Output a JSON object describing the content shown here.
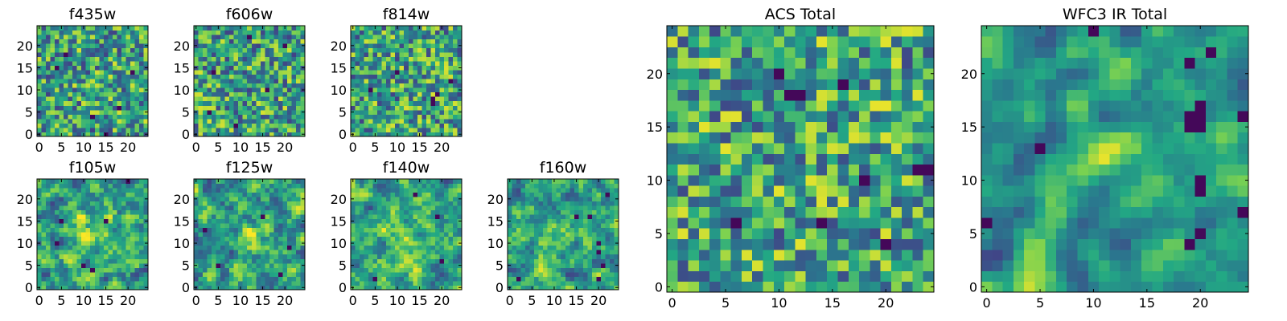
{
  "colormap": {
    "name": "viridis",
    "stops": [
      "#440154",
      "#414487",
      "#2a788e",
      "#22a884",
      "#7ad151",
      "#fde725"
    ]
  },
  "chart_data": [
    {
      "type": "heatmap",
      "title": "f435w",
      "image_size": [
        25,
        25
      ],
      "xlim": [
        -0.5,
        24.5
      ],
      "ylim": [
        -0.5,
        24.5
      ],
      "xticks": [
        0,
        5,
        10,
        15,
        20
      ],
      "yticks": [
        0,
        5,
        10,
        15,
        20
      ],
      "texture_seed": 101,
      "smoothness": 0,
      "value_bias": 0.55,
      "blobs": [],
      "dark_spots": [
        [
          6,
          18
        ],
        [
          18,
          6
        ],
        [
          12,
          4
        ],
        [
          21,
          14
        ],
        [
          4,
          15
        ],
        [
          15,
          0
        ]
      ]
    },
    {
      "type": "heatmap",
      "title": "f606w",
      "image_size": [
        25,
        25
      ],
      "xlim": [
        -0.5,
        24.5
      ],
      "ylim": [
        -0.5,
        24.5
      ],
      "xticks": [
        0,
        5,
        10,
        15,
        20
      ],
      "yticks": [
        0,
        5,
        10,
        15,
        20
      ],
      "texture_seed": 202,
      "smoothness": 0,
      "value_bias": 0.55,
      "blobs": [],
      "dark_spots": [
        [
          4,
          14
        ],
        [
          9,
          2
        ],
        [
          16,
          10
        ],
        [
          20,
          20
        ],
        [
          3,
          5
        ],
        [
          12,
          22
        ]
      ]
    },
    {
      "type": "heatmap",
      "title": "f814w",
      "image_size": [
        25,
        25
      ],
      "xlim": [
        -0.5,
        24.5
      ],
      "ylim": [
        -0.5,
        24.5
      ],
      "xticks": [
        0,
        5,
        10,
        15,
        20
      ],
      "yticks": [
        0,
        5,
        10,
        15,
        20
      ],
      "texture_seed": 303,
      "smoothness": 0,
      "value_bias": 0.55,
      "blobs": [],
      "dark_spots": [
        [
          18,
          8
        ],
        [
          18,
          7
        ],
        [
          19,
          9
        ],
        [
          10,
          14
        ],
        [
          4,
          10
        ],
        [
          22,
          12
        ]
      ]
    },
    {
      "type": "heatmap",
      "title": "f105w",
      "image_size": [
        25,
        25
      ],
      "xlim": [
        -0.5,
        24.5
      ],
      "ylim": [
        -0.5,
        24.5
      ],
      "xticks": [
        0,
        5,
        10,
        15,
        20
      ],
      "yticks": [
        0,
        5,
        10,
        15,
        20
      ],
      "texture_seed": 404,
      "smoothness": 1,
      "value_bias": 0.6,
      "blobs": [
        [
          13,
          12,
          3,
          0.25
        ]
      ],
      "dark_spots": [
        [
          12,
          4
        ],
        [
          10,
          5
        ],
        [
          4,
          10
        ],
        [
          5,
          15
        ],
        [
          15,
          15
        ],
        [
          20,
          24
        ]
      ]
    },
    {
      "type": "heatmap",
      "title": "f125w",
      "image_size": [
        25,
        25
      ],
      "xlim": [
        -0.5,
        24.5
      ],
      "ylim": [
        -0.5,
        24.5
      ],
      "xticks": [
        0,
        5,
        10,
        15,
        20
      ],
      "yticks": [
        0,
        5,
        10,
        15,
        20
      ],
      "texture_seed": 505,
      "smoothness": 1,
      "value_bias": 0.6,
      "blobs": [
        [
          13,
          12,
          3,
          0.2
        ]
      ],
      "dark_spots": [
        [
          5,
          5
        ],
        [
          19,
          3
        ],
        [
          15,
          16
        ],
        [
          2,
          13
        ],
        [
          21,
          9
        ]
      ]
    },
    {
      "type": "heatmap",
      "title": "f140w",
      "image_size": [
        25,
        25
      ],
      "xlim": [
        -0.5,
        24.5
      ],
      "ylim": [
        -0.5,
        24.5
      ],
      "xticks": [
        0,
        5,
        10,
        15,
        20
      ],
      "yticks": [
        0,
        5,
        10,
        15,
        20
      ],
      "texture_seed": 606,
      "smoothness": 1,
      "value_bias": 0.62,
      "blobs": [
        [
          12,
          12,
          3,
          0.2
        ]
      ],
      "dark_spots": [
        [
          5,
          2
        ],
        [
          19,
          16
        ],
        [
          20,
          6
        ],
        [
          14,
          21
        ]
      ]
    },
    {
      "type": "heatmap",
      "title": "f160w",
      "image_size": [
        25,
        25
      ],
      "xlim": [
        -0.5,
        24.5
      ],
      "ylim": [
        -0.5,
        24.5
      ],
      "xticks": [
        0,
        5,
        10,
        15,
        20
      ],
      "yticks": [
        0,
        5,
        10,
        15,
        20
      ],
      "texture_seed": 707,
      "smoothness": 1,
      "value_bias": 0.6,
      "blobs": [
        [
          12,
          12,
          2.5,
          0.3
        ]
      ],
      "dark_spots": [
        [
          20,
          10
        ],
        [
          20,
          8
        ],
        [
          21,
          5
        ],
        [
          20,
          2
        ],
        [
          15,
          16
        ],
        [
          18,
          16
        ],
        [
          22,
          21
        ],
        [
          2,
          2
        ]
      ]
    },
    {
      "type": "heatmap",
      "title": "ACS Total",
      "image_size": [
        25,
        25
      ],
      "xlim": [
        -0.5,
        24.5
      ],
      "ylim": [
        -0.5,
        24.5
      ],
      "xticks": [
        0,
        5,
        10,
        15,
        20
      ],
      "yticks": [
        0,
        5,
        10,
        15,
        20
      ],
      "texture_seed": 808,
      "smoothness": 0,
      "value_bias": 0.62,
      "blobs": [],
      "dark_spots": [
        [
          11,
          18
        ],
        [
          12,
          18
        ],
        [
          6,
          6
        ],
        [
          14,
          6
        ],
        [
          18,
          10
        ],
        [
          20,
          4
        ],
        [
          24,
          11
        ],
        [
          23,
          11
        ],
        [
          10,
          20
        ],
        [
          16,
          19
        ]
      ]
    },
    {
      "type": "heatmap",
      "title": "WFC3 IR Total",
      "image_size": [
        25,
        25
      ],
      "xlim": [
        -0.5,
        24.5
      ],
      "ylim": [
        -0.5,
        24.5
      ],
      "xticks": [
        0,
        5,
        10,
        15,
        20
      ],
      "yticks": [
        0,
        5,
        10,
        15,
        20
      ],
      "texture_seed": 909,
      "smoothness": 2,
      "value_bias": 0.5,
      "blobs": [
        [
          12,
          12,
          2.2,
          0.45
        ]
      ],
      "dark_spots": [
        [
          19,
          15
        ],
        [
          20,
          15
        ],
        [
          19,
          16
        ],
        [
          20,
          16
        ],
        [
          20,
          17
        ],
        [
          19,
          21
        ],
        [
          21,
          22
        ],
        [
          20,
          10
        ],
        [
          20,
          9
        ],
        [
          20,
          5
        ],
        [
          19,
          4
        ],
        [
          0,
          6
        ],
        [
          24,
          7
        ],
        [
          10,
          24
        ],
        [
          5,
          13
        ],
        [
          24,
          16
        ]
      ]
    }
  ]
}
